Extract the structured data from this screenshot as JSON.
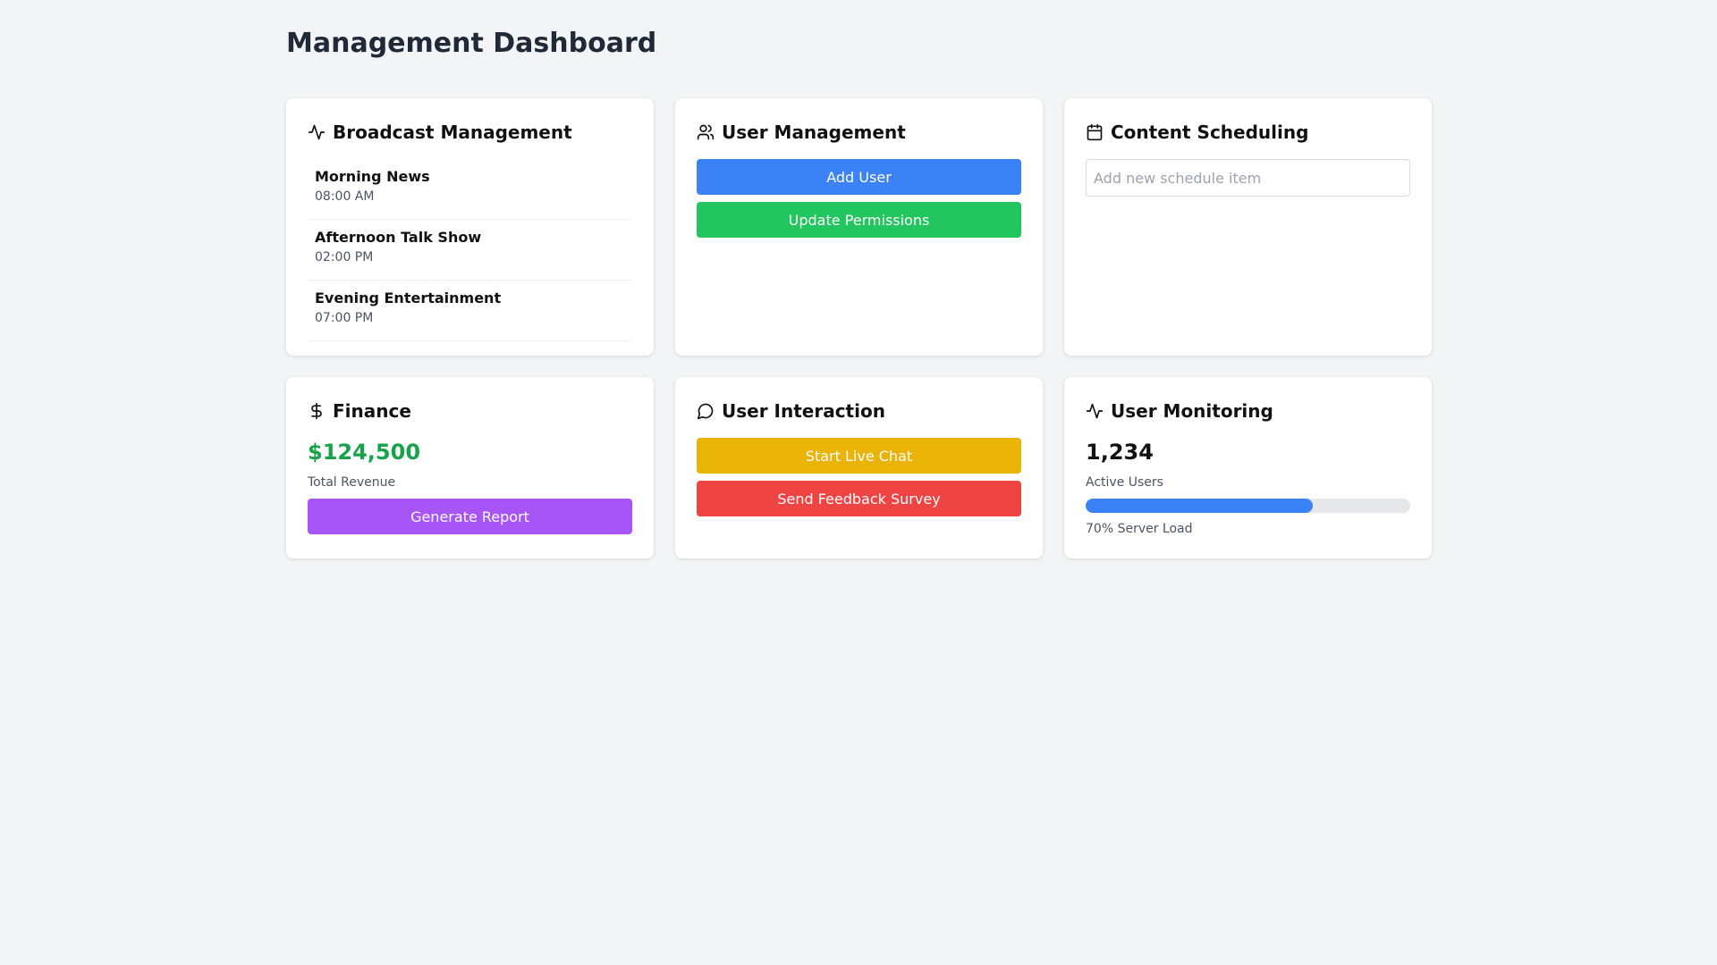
{
  "header": {
    "title": "Management Dashboard"
  },
  "cards": {
    "broadcast": {
      "title": "Broadcast Management",
      "items": [
        {
          "name": "Morning News",
          "time": "08:00 AM"
        },
        {
          "name": "Afternoon Talk Show",
          "time": "02:00 PM"
        },
        {
          "name": "Evening Entertainment",
          "time": "07:00 PM"
        }
      ]
    },
    "user_management": {
      "title": "User Management",
      "buttons": [
        "Add User",
        "Update Permissions"
      ]
    },
    "content_scheduling": {
      "title": "Content Scheduling",
      "placeholder": "Add new schedule item"
    },
    "finance": {
      "title": "Finance",
      "amount": "$124,500",
      "label": "Total Revenue",
      "button": "Generate Report"
    },
    "interaction": {
      "title": "User Interaction",
      "buttons": [
        "Start Live Chat",
        "Send Feedback Survey"
      ]
    },
    "monitoring": {
      "title": "User Monitoring",
      "active_users": "1,234",
      "label": "Active Users",
      "server_load": 70,
      "server_load_label": "70% Server Load"
    }
  }
}
